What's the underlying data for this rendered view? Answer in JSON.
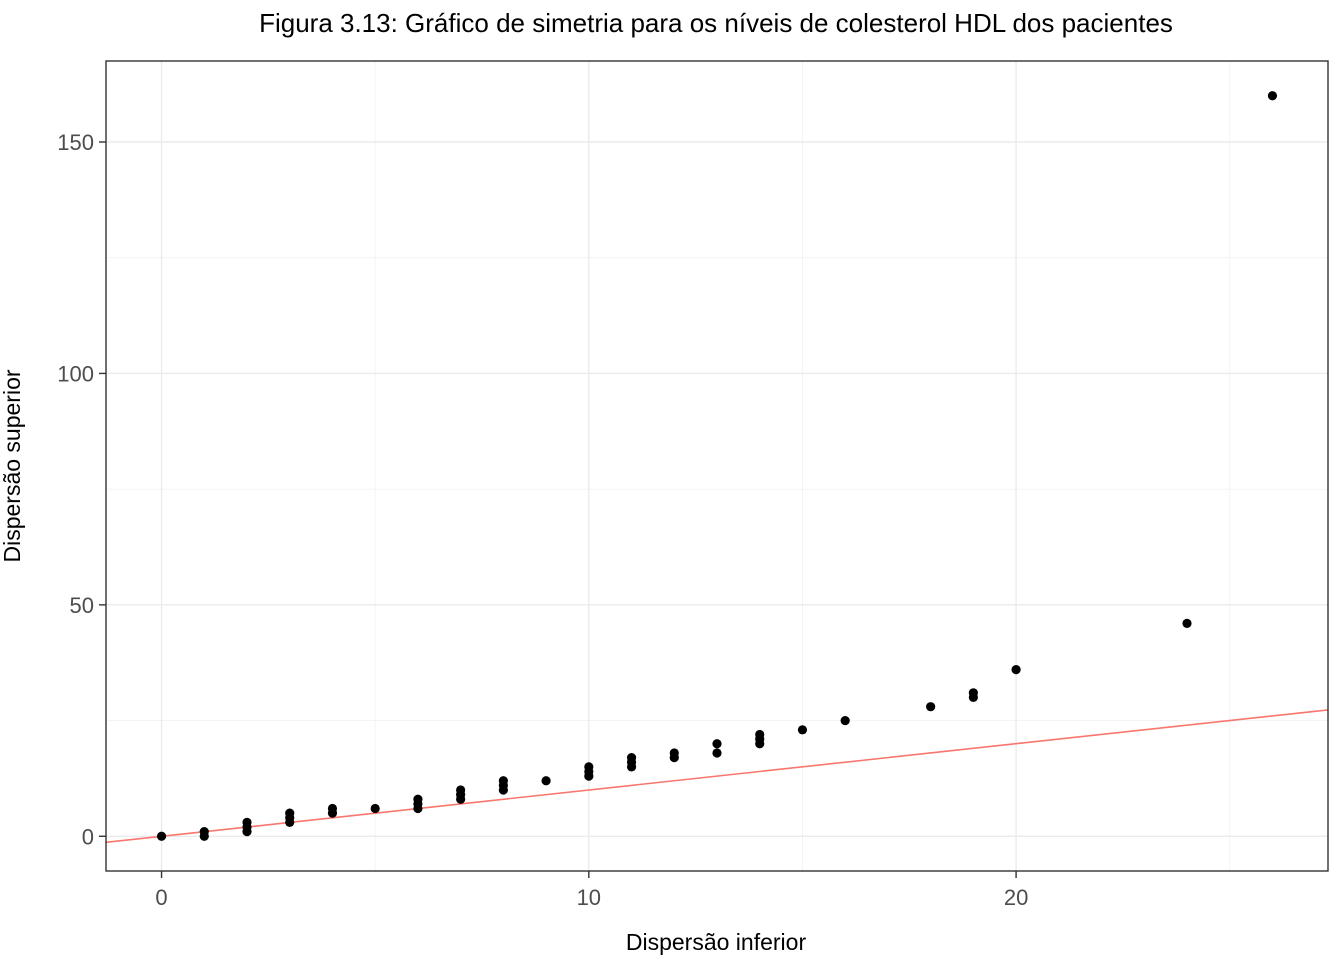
{
  "chart_data": {
    "type": "scatter",
    "title": "Figura 3.13: Gráfico de simetria para os níveis de colesterol HDL dos pacientes",
    "xlabel": "Dispersão inferior",
    "ylabel": "Dispersão superior",
    "xlim": [
      -1.3,
      27.3
    ],
    "ylim": [
      -7.5,
      167.5
    ],
    "x_ticks": [
      0,
      10,
      20
    ],
    "x_tick_labels": [
      "0",
      "10",
      "20"
    ],
    "y_ticks": [
      0,
      50,
      100,
      150
    ],
    "y_tick_labels": [
      "0",
      "50",
      "100",
      "150"
    ],
    "grid": true,
    "reference_line": {
      "slope": 1,
      "intercept": 0,
      "color": "#f8766d"
    },
    "point_color": "#000000",
    "series": [
      {
        "points": [
          {
            "x": 0,
            "y": 0
          },
          {
            "x": 1,
            "y": 0
          },
          {
            "x": 1,
            "y": 1
          },
          {
            "x": 2,
            "y": 1
          },
          {
            "x": 2,
            "y": 2
          },
          {
            "x": 2,
            "y": 3
          },
          {
            "x": 3,
            "y": 3
          },
          {
            "x": 3,
            "y": 4
          },
          {
            "x": 3,
            "y": 5
          },
          {
            "x": 4,
            "y": 5
          },
          {
            "x": 4,
            "y": 6
          },
          {
            "x": 5,
            "y": 6
          },
          {
            "x": 6,
            "y": 6
          },
          {
            "x": 6,
            "y": 7
          },
          {
            "x": 6,
            "y": 8
          },
          {
            "x": 7,
            "y": 8
          },
          {
            "x": 7,
            "y": 9
          },
          {
            "x": 7,
            "y": 10
          },
          {
            "x": 8,
            "y": 10
          },
          {
            "x": 8,
            "y": 11
          },
          {
            "x": 8,
            "y": 12
          },
          {
            "x": 9,
            "y": 12
          },
          {
            "x": 10,
            "y": 13
          },
          {
            "x": 10,
            "y": 14
          },
          {
            "x": 10,
            "y": 15
          },
          {
            "x": 11,
            "y": 15
          },
          {
            "x": 11,
            "y": 16
          },
          {
            "x": 11,
            "y": 17
          },
          {
            "x": 12,
            "y": 17
          },
          {
            "x": 12,
            "y": 18
          },
          {
            "x": 13,
            "y": 18
          },
          {
            "x": 13,
            "y": 20
          },
          {
            "x": 14,
            "y": 20
          },
          {
            "x": 14,
            "y": 21
          },
          {
            "x": 14,
            "y": 22
          },
          {
            "x": 15,
            "y": 23
          },
          {
            "x": 16,
            "y": 25
          },
          {
            "x": 18,
            "y": 28
          },
          {
            "x": 19,
            "y": 30
          },
          {
            "x": 19,
            "y": 31
          },
          {
            "x": 20,
            "y": 36
          },
          {
            "x": 24,
            "y": 46
          },
          {
            "x": 26,
            "y": 160
          }
        ]
      }
    ]
  }
}
